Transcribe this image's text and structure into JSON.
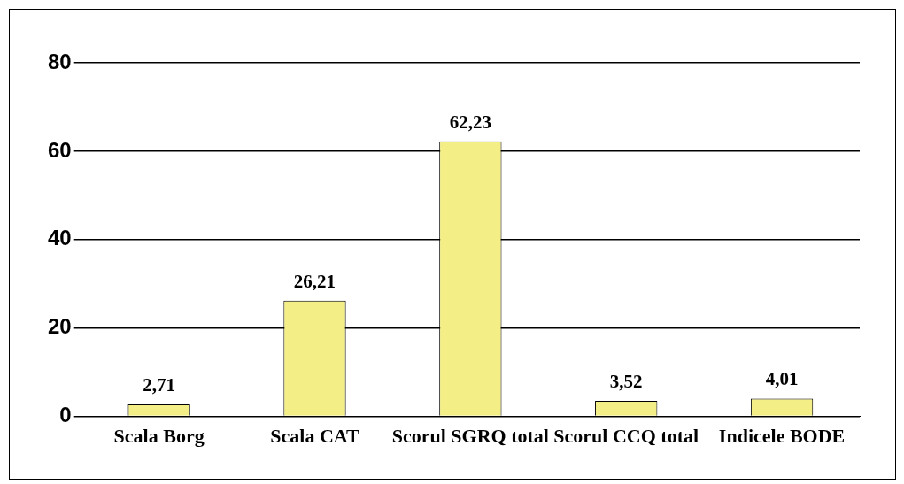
{
  "chart_data": {
    "type": "bar",
    "categories": [
      "Scala Borg",
      "Scala CAT",
      "Scorul SGRQ total",
      "Scorul CCQ total",
      "Indicele BODE"
    ],
    "values": [
      2.71,
      26.21,
      62.23,
      3.52,
      4.01
    ],
    "value_labels": [
      "2,71",
      "26,21",
      "62,23",
      "3,52",
      "4,01"
    ],
    "color": "#f3ee86",
    "ylim": [
      0,
      80
    ],
    "yticks": [
      0,
      20,
      40,
      60,
      80
    ],
    "grid": "y",
    "legend": false
  }
}
